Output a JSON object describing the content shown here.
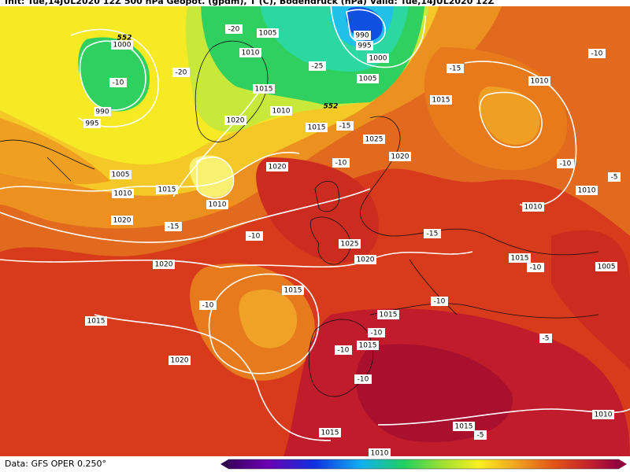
{
  "header": {
    "text": "Init: Tue,14JUL2020 12Z   500 hPa Geopot. (gpdm), T (C), Bodendruck (hPa)   Valid: Tue,14JUL2020 12Z"
  },
  "map": {
    "labels": [
      "1000",
      "-10",
      "990",
      "995",
      "-20",
      "-20",
      "1005",
      "990",
      "995",
      "1000",
      "-25",
      "1005",
      "1010",
      "1015",
      "1010",
      "1020",
      "1015",
      "-15",
      "1025",
      "1020",
      "-10",
      "1020",
      "1005",
      "1010",
      "1015",
      "1010",
      "1020",
      "-15",
      "-10",
      "1025",
      "1020",
      "-15",
      "1020",
      "1015",
      "-10",
      "1015",
      "1015",
      "-10",
      "1015",
      "-10",
      "1020",
      "-10",
      "1015",
      "1015",
      "-5",
      "1010",
      "1010",
      "-5",
      "1015",
      "-10",
      "1005",
      "1010",
      "1010",
      "-5",
      "1015",
      "-15",
      "1010",
      "-10",
      "-10",
      "-10",
      "552",
      "552"
    ]
  },
  "footer": {
    "source": "Data: GFS OPER 0.250°"
  }
}
